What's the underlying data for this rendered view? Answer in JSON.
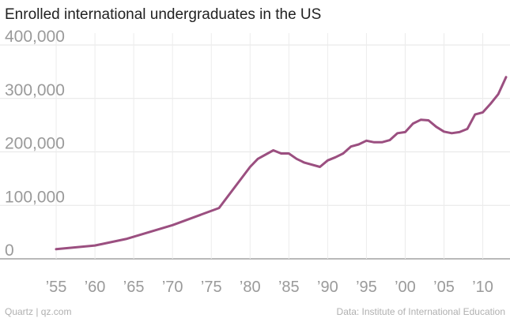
{
  "chart_data": {
    "type": "line",
    "title": "Enrolled international undergraduates in the US",
    "xlabel": "",
    "ylabel": "",
    "xlim": [
      1950,
      2013
    ],
    "ylim": [
      0,
      400000
    ],
    "grid": true,
    "y_ticks": [
      {
        "value": 0,
        "label": "0"
      },
      {
        "value": 100000,
        "label": "100,000"
      },
      {
        "value": 200000,
        "label": "200,000"
      },
      {
        "value": 300000,
        "label": "300,000"
      },
      {
        "value": 400000,
        "label": "400,000"
      }
    ],
    "x_ticks": [
      {
        "value": 1955,
        "label": "’55"
      },
      {
        "value": 1960,
        "label": "’60"
      },
      {
        "value": 1965,
        "label": "’65"
      },
      {
        "value": 1970,
        "label": "’70"
      },
      {
        "value": 1975,
        "label": "’75"
      },
      {
        "value": 1980,
        "label": "’80"
      },
      {
        "value": 1985,
        "label": "’85"
      },
      {
        "value": 1990,
        "label": "’90"
      },
      {
        "value": 1995,
        "label": "’95"
      },
      {
        "value": 2000,
        "label": "’00"
      },
      {
        "value": 2005,
        "label": "’05"
      },
      {
        "value": 2010,
        "label": "’10"
      }
    ],
    "series": [
      {
        "color": "#9b4f80",
        "x": [
          1955,
          1960,
          1964,
          1970,
          1976,
          1980,
          1981,
          1983,
          1984,
          1985,
          1986,
          1987,
          1989,
          1990,
          1991,
          1992,
          1993,
          1994,
          1995,
          1996,
          1997,
          1998,
          1999,
          2000,
          2001,
          2002,
          2003,
          2004,
          2005,
          2006,
          2007,
          2008,
          2009,
          2010,
          2011,
          2012
        ],
        "values": [
          18000,
          25000,
          37000,
          63000,
          95000,
          172000,
          187000,
          203000,
          197000,
          197000,
          187000,
          180000,
          172000,
          184000,
          190000,
          197000,
          210000,
          214000,
          221000,
          218000,
          218000,
          222000,
          235000,
          237000,
          253000,
          260000,
          259000,
          247000,
          238000,
          235000,
          237000,
          243000,
          270000,
          274000,
          290000,
          308000
        ]
      }
    ],
    "extend_series_to": {
      "x": 2013,
      "value": 340000
    }
  },
  "footer": {
    "source_left": "Quartz | qz.com",
    "source_right": "Data: Institute of International Education"
  }
}
